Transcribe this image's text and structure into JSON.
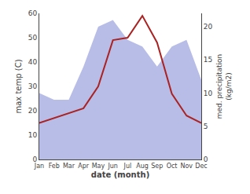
{
  "chart_data": {
    "type": "line",
    "xlabel": "date (month)",
    "ylabel": "max temp (C)",
    "y2label": "med. precipitation\n(kg/m2)",
    "categories": [
      "Jan",
      "Feb",
      "Mar",
      "Apr",
      "May",
      "Jun",
      "Jul",
      "Aug",
      "Sep",
      "Oct",
      "Nov",
      "Dec"
    ],
    "series": [
      {
        "type": "area",
        "axis": "y2",
        "color": "#b8bde8",
        "values": [
          10,
          9,
          9,
          14,
          20,
          21,
          18,
          17,
          14,
          17,
          18,
          12
        ]
      },
      {
        "type": "line",
        "color": "#aa2222",
        "values": [
          15,
          17,
          19,
          21,
          30,
          49,
          50,
          59,
          48,
          27,
          18,
          15
        ]
      }
    ],
    "ylim": [
      0,
      60
    ],
    "yticks": [
      0,
      10,
      20,
      30,
      40,
      50,
      60
    ],
    "y2lim": [
      0,
      22
    ],
    "y2ticks": [
      0,
      5,
      10,
      15,
      20
    ],
    "grid": false
  }
}
